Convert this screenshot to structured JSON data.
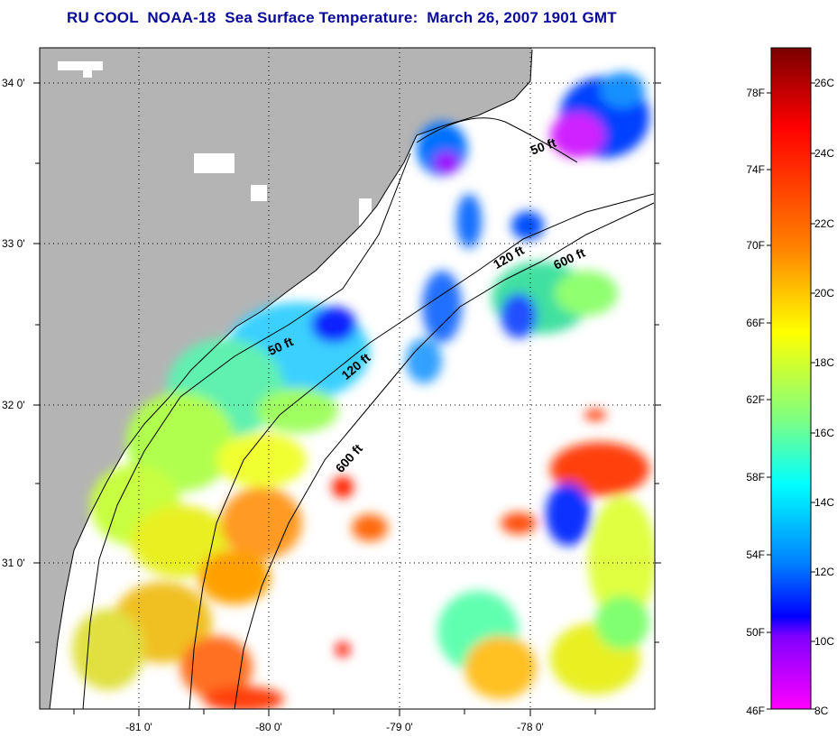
{
  "title": "RU COOL  NOAA-18  Sea Surface Temperature:  March 26, 2007 1901 GMT",
  "map": {
    "lat_labels": [
      "34 0'",
      "33 0'",
      "32 0'",
      "31 0'"
    ],
    "lon_labels": [
      "-81 0'",
      "-80 0'",
      "-79 0'",
      "-78 0'"
    ],
    "colors": {
      "land": "#b4b4b4",
      "ocean_nodata": "#ffffff",
      "grid": "#000000",
      "coast": "#000000"
    },
    "isobaths": [
      {
        "label": "50 ft"
      },
      {
        "label": "120 ft"
      },
      {
        "label": "600 ft"
      },
      {
        "label": "50 ft"
      },
      {
        "label": "120 ft"
      },
      {
        "label": "600 ft"
      }
    ]
  },
  "colorbar": {
    "fahrenheit_labels": [
      "78F",
      "74F",
      "70F",
      "66F",
      "62F",
      "58F",
      "54F",
      "50F",
      "46F"
    ],
    "celsius_labels": [
      "26C",
      "24C",
      "22C",
      "20C",
      "18C",
      "16C",
      "14C",
      "12C",
      "10C",
      "8C"
    ],
    "gradient_stops": [
      "#7a0000",
      "#ff0000",
      "#ff8000",
      "#ffff00",
      "#80ff80",
      "#00ffff",
      "#0080ff",
      "#0000ff",
      "#8000ff",
      "#ff00ff"
    ]
  }
}
